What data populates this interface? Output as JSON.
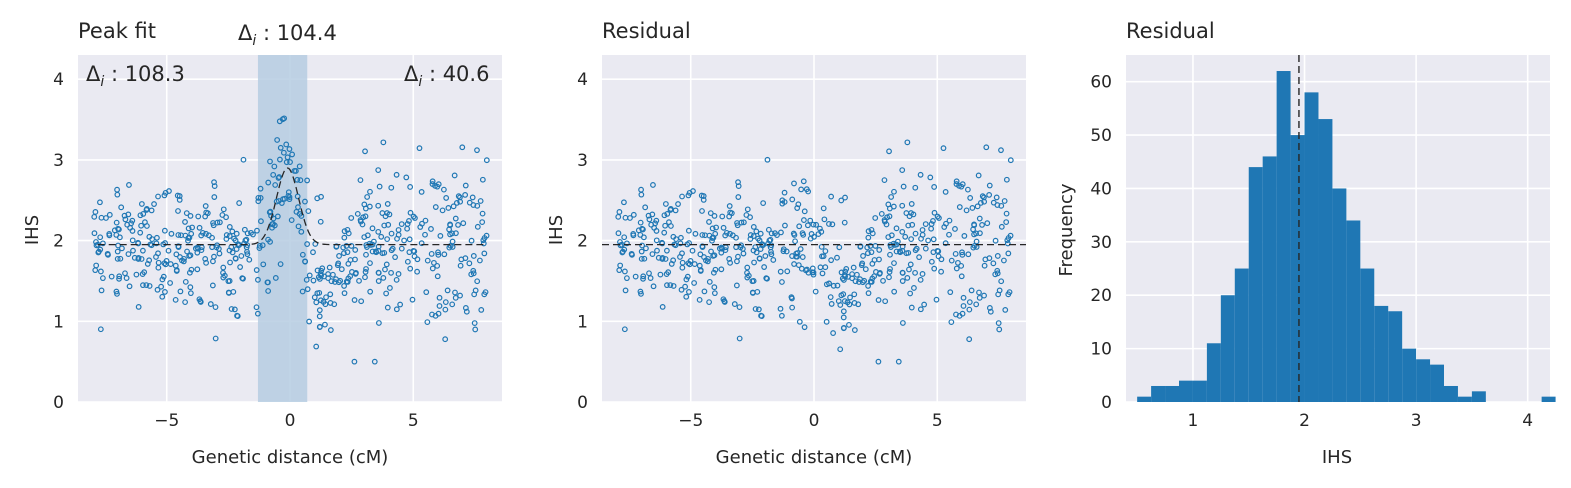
{
  "colors": {
    "plot_bg": "#EAEAF2",
    "grid": "#FFFFFF",
    "series": "#1F77B4",
    "span": "#B6CDE2",
    "line": "#262626"
  },
  "chart_data": [
    {
      "type": "scatter",
      "title": "Peak fit",
      "xlabel": "Genetic distance (cM)",
      "ylabel": "IHS",
      "xlim": [
        -8.6,
        8.6
      ],
      "ylim": [
        0,
        4.3
      ],
      "xticks": [
        "−5",
        "0",
        "5"
      ],
      "yticks": [
        "0",
        "1",
        "2",
        "3",
        "4"
      ],
      "grid": true,
      "baseline": 1.95,
      "peak_fit": {
        "center": -0.1,
        "height": 0.95,
        "sigma": 0.45
      },
      "highlight_span": [
        -1.3,
        0.7
      ],
      "point_count": 600,
      "annotations": [
        {
          "text": "Δ",
          "sub": "i",
          "rest": " : 108.3",
          "position": "top-left"
        },
        {
          "text": "Δ",
          "sub": "i",
          "rest": " : 104.4",
          "position": "above-peak"
        },
        {
          "text": "Δ",
          "sub": "i",
          "rest": " : 40.6",
          "position": "top-right"
        }
      ]
    },
    {
      "type": "scatter",
      "title": "Residual",
      "xlabel": "Genetic distance (cM)",
      "ylabel": "IHS",
      "xlim": [
        -8.6,
        8.6
      ],
      "ylim": [
        0,
        4.3
      ],
      "xticks": [
        "−5",
        "0",
        "5"
      ],
      "yticks": [
        "0",
        "1",
        "2",
        "3",
        "4"
      ],
      "grid": true,
      "baseline": 1.95,
      "point_count": 600
    },
    {
      "type": "bar",
      "title": "Residual",
      "xlabel": "IHS",
      "ylabel": "Frequency",
      "xlim": [
        0.4,
        4.2
      ],
      "ylim": [
        0,
        65
      ],
      "xticks": [
        "1",
        "2",
        "3",
        "4"
      ],
      "yticks": [
        "0",
        "10",
        "20",
        "30",
        "40",
        "50",
        "60"
      ],
      "grid": true,
      "bin_start": 0.5,
      "bin_width": 0.125,
      "values": [
        1,
        3,
        3,
        4,
        4,
        11,
        20,
        25,
        44,
        46,
        62,
        50,
        58,
        53,
        40,
        34,
        25,
        18,
        17,
        10,
        8,
        7,
        3,
        1,
        2,
        0,
        0,
        0,
        0,
        1
      ],
      "mean_line": 1.95
    }
  ]
}
